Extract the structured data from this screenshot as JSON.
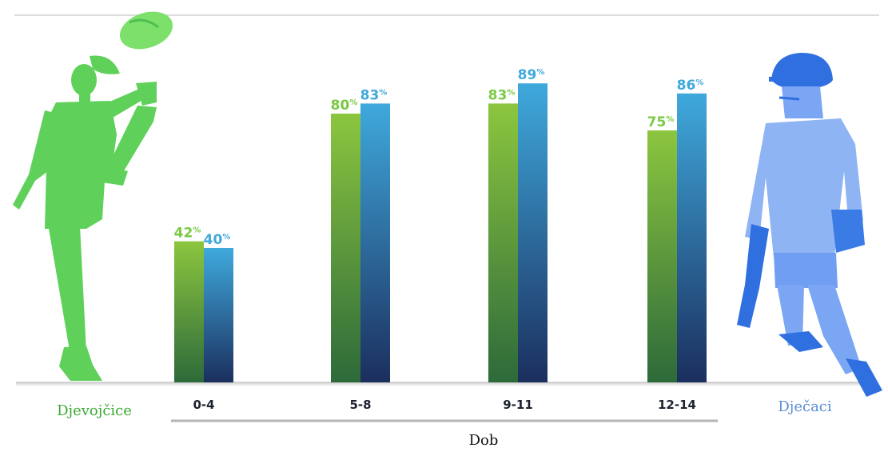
{
  "chart_data": {
    "type": "bar",
    "categories": [
      "0-4",
      "5-8",
      "9-11",
      "12-14"
    ],
    "series": [
      {
        "name": "Djevojčice",
        "values": [
          42,
          80,
          83,
          75
        ],
        "color": "#7ac943",
        "dark": "#2d6a3a"
      },
      {
        "name": "Dječaci",
        "values": [
          40,
          83,
          89,
          86
        ],
        "color": "#3fa9dc",
        "dark": "#1b2f5e"
      }
    ],
    "value_suffix": "%",
    "xlabel": "Dob",
    "ylabel": "",
    "ylim": [
      0,
      100
    ],
    "grid": false,
    "legend": {
      "position": "sides",
      "left": "Djevojčice",
      "right": "Dječaci"
    }
  },
  "legend_colors": {
    "girls_text": "#3aa935",
    "boys_text": "#5b8fd6"
  },
  "icons": {
    "left": "girl-kicking-ball-silhouette",
    "right": "boy-cricketer-silhouette"
  }
}
